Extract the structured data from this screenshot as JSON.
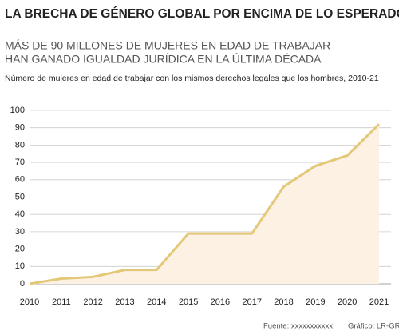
{
  "chart_data": {
    "type": "area",
    "title": "LA BRECHA DE GÉNERO GLOBAL POR ENCIMA DE LO ESPERADO",
    "subtitle": [
      "MÁS DE 90 MILLONES DE MUJERES EN EDAD DE TRABAJAR",
      "HAN GANADO IGUALDAD JURÍDICA EN LA ÚLTIMA DÉCADA"
    ],
    "description": "Número de mujeres en edad de trabajar con los mismos derechos legales que los hombres, 2010-21",
    "categories": [
      "2010",
      "2011",
      "2012",
      "2013",
      "2014",
      "2015",
      "2016",
      "2017",
      "2018",
      "2019",
      "2020",
      "2021"
    ],
    "values": [
      0,
      3,
      4,
      8,
      8,
      29,
      29,
      29,
      56,
      68,
      74,
      92
    ],
    "color": "#e3c878",
    "fill": "#fdf1e3",
    "ylim": [
      0,
      100
    ],
    "yticks": [
      0,
      10,
      20,
      30,
      40,
      50,
      60,
      70,
      80,
      90,
      100
    ],
    "grid": true,
    "source": "Fuente: xxxxxxxxxxx",
    "credit": "Gráfico: LR-GR"
  }
}
